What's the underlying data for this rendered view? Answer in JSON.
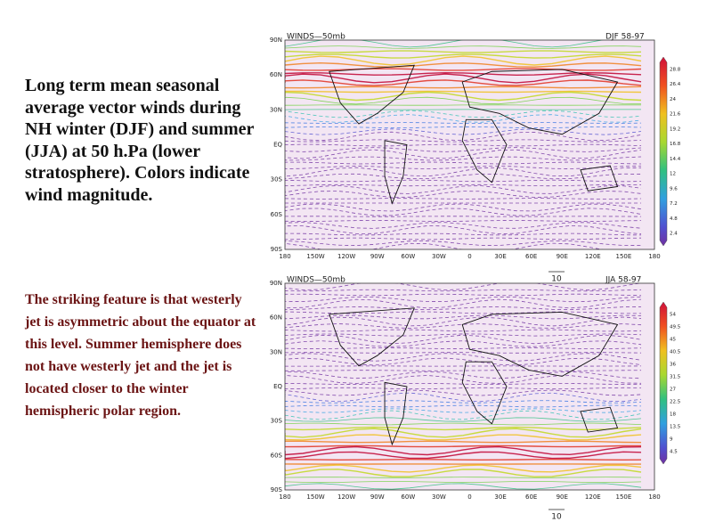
{
  "text": {
    "heading": "Long term mean seasonal average vector winds during NH winter (DJF) and summer (JJA) at 50 h.Pa (lower stratosphere). Colors indicate wind magnitude.",
    "body": "The striking feature is that westerly jet is asymmetric about the equator at this level. Summer hemisphere does not have westerly jet and the jet is located closer to the winter hemispheric polar region."
  },
  "maps": [
    {
      "title": "WINDS—50mb",
      "period": "DJF 58-97",
      "lat_labels": [
        "90N",
        "60N",
        "30N",
        "EQ",
        "30S",
        "60S",
        "90S"
      ],
      "lon_labels": [
        "180",
        "150W",
        "120W",
        "90W",
        "60W",
        "30W",
        "0",
        "30E",
        "60E",
        "90E",
        "120E",
        "150E",
        "180"
      ],
      "colorbar_labels": [
        "28.8",
        "26.4",
        "24",
        "21.6",
        "19.2",
        "16.8",
        "14.4",
        "12",
        "9.6",
        "7.2",
        "4.8",
        "2.4"
      ],
      "reference_vector": "10"
    },
    {
      "title": "WINDS—50mb",
      "period": "JJA 58-97",
      "lat_labels": [
        "90N",
        "60N",
        "30N",
        "EQ",
        "30S",
        "60S",
        "90S"
      ],
      "lon_labels": [
        "180",
        "150W",
        "120W",
        "90W",
        "60W",
        "30W",
        "0",
        "30E",
        "60E",
        "90E",
        "120E",
        "150E",
        "180"
      ],
      "colorbar_labels": [
        "54",
        "49.5",
        "45",
        "40.5",
        "36",
        "31.5",
        "27",
        "22.5",
        "18",
        "13.5",
        "9",
        "4.5"
      ],
      "reference_vector": "10"
    }
  ]
}
